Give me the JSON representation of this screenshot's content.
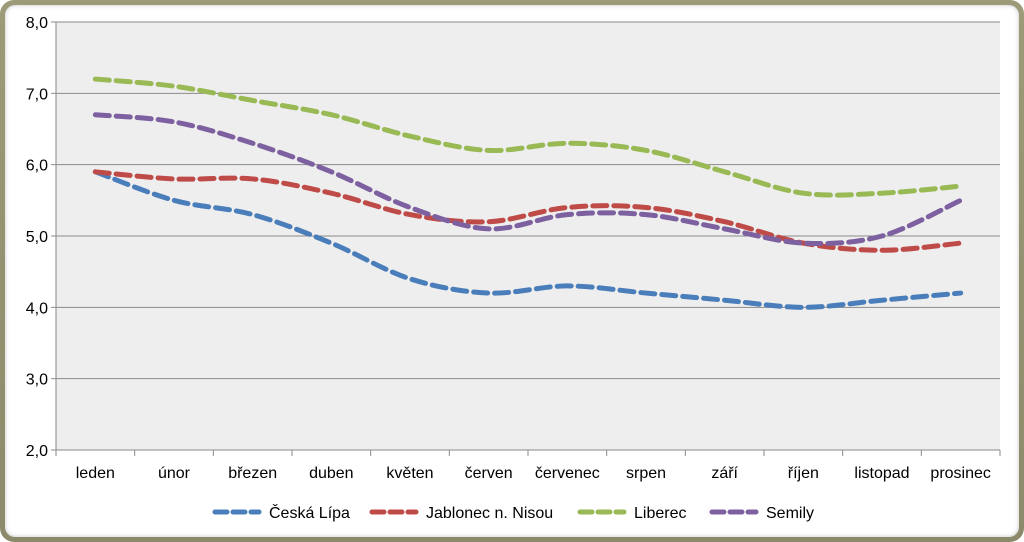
{
  "chart_data": {
    "type": "line",
    "title": "",
    "xlabel": "",
    "ylabel": "",
    "categories": [
      "leden",
      "únor",
      "březen",
      "duben",
      "květen",
      "červen",
      "červenec",
      "srpen",
      "září",
      "říjen",
      "listopad",
      "prosinec"
    ],
    "ylim": [
      2.0,
      8.0
    ],
    "yticks": [
      "2,0",
      "3,0",
      "4,0",
      "5,0",
      "6,0",
      "7,0",
      "8,0"
    ],
    "grid": true,
    "legend_position": "bottom",
    "line_style": "dashed-smooth",
    "series": [
      {
        "name": "Česká Lípa",
        "color": "#4a7ebb",
        "values": [
          5.9,
          5.5,
          5.3,
          4.9,
          4.4,
          4.2,
          4.3,
          4.2,
          4.1,
          4.0,
          4.1,
          4.2
        ]
      },
      {
        "name": "Jablonec n. Nisou",
        "color": "#be4b48",
        "values": [
          5.9,
          5.8,
          5.8,
          5.6,
          5.3,
          5.2,
          5.4,
          5.4,
          5.2,
          4.9,
          4.8,
          4.9
        ]
      },
      {
        "name": "Liberec",
        "color": "#98b954",
        "values": [
          7.2,
          7.1,
          6.9,
          6.7,
          6.4,
          6.2,
          6.3,
          6.2,
          5.9,
          5.6,
          5.6,
          5.7
        ]
      },
      {
        "name": "Semily",
        "color": "#7d60a0",
        "values": [
          6.7,
          6.6,
          6.3,
          5.9,
          5.4,
          5.1,
          5.3,
          5.3,
          5.1,
          4.9,
          5.0,
          5.5
        ]
      }
    ]
  }
}
